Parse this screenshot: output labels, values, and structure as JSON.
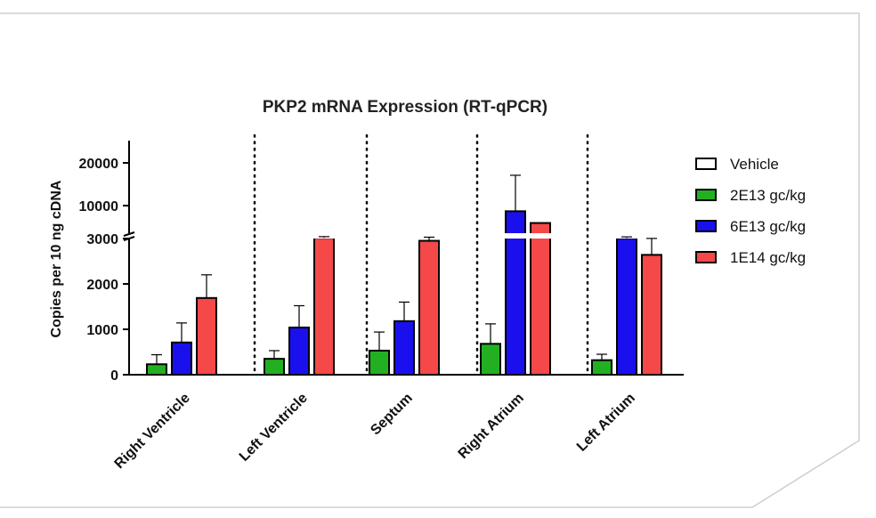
{
  "chart_data": {
    "type": "bar",
    "title": "PKP2 mRNA Expression (RT-qPCR)",
    "xlabel": "",
    "ylabel": "Copies per 10 ng cDNA",
    "y_axis": {
      "segmented": true,
      "lower_segment": {
        "range": [
          0,
          3000
        ],
        "ticks": [
          0,
          1000,
          2000,
          3000
        ]
      },
      "upper_segment": {
        "range": [
          3000,
          25000
        ],
        "ticks": [
          10000,
          20000
        ]
      },
      "tick_labels": [
        "0",
        "1000",
        "2000",
        "3000",
        "10000",
        "20000"
      ]
    },
    "categories": [
      "Right Ventricle",
      "Left Ventricle",
      "Septum",
      "Right Atrium",
      "Left Atrium"
    ],
    "legend_position": "right",
    "series": [
      {
        "name": "Vehicle",
        "color": "#ffffff",
        "values": [
          0,
          0,
          0,
          0,
          0
        ],
        "errors": [
          0,
          0,
          0,
          0,
          0
        ]
      },
      {
        "name": "2E13 gc/kg",
        "color": "#22b022",
        "values": [
          230,
          350,
          530,
          680,
          320
        ],
        "errors": [
          210,
          180,
          410,
          440,
          130
        ]
      },
      {
        "name": "6E13 gc/kg",
        "color": "#1a10ee",
        "values": [
          710,
          1040,
          1180,
          8800,
          3100
        ],
        "errors": [
          430,
          480,
          420,
          8300,
          250
        ]
      },
      {
        "name": "1E14 gc/kg",
        "color": "#f54848",
        "values": [
          1690,
          3150,
          2950,
          6300,
          2640
        ],
        "errors": [
          510,
          250,
          340,
          0,
          380
        ]
      }
    ]
  }
}
